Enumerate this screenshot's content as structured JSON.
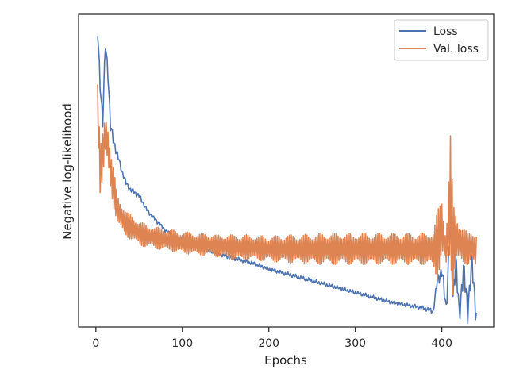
{
  "chart_data": {
    "type": "line",
    "xlabel": "Epochs",
    "ylabel": "Negative log-likelihood",
    "xlim": [
      -20,
      460
    ],
    "ylim": [
      0,
      100
    ],
    "x_ticks": [
      0,
      100,
      200,
      300,
      400
    ],
    "y_ticks_shown": false,
    "grid": false,
    "legend_position": "upper right",
    "series": [
      {
        "name": "Loss",
        "color": "#4c72b0",
        "x": [
          2,
          5,
          8,
          11,
          14,
          17,
          20,
          25,
          30,
          35,
          40,
          45,
          50,
          60,
          70,
          80,
          90,
          100,
          120,
          140,
          160,
          180,
          200,
          220,
          240,
          260,
          280,
          300,
          320,
          340,
          360,
          380,
          390,
          395,
          400,
          405,
          410,
          413,
          416,
          420,
          425,
          430,
          435,
          440
        ],
        "y": [
          94,
          78,
          66,
          90,
          82,
          64,
          60,
          55,
          50,
          46,
          44,
          43,
          42,
          37,
          34,
          31,
          29,
          28,
          25.5,
          23.5,
          22,
          20.5,
          18.5,
          17,
          15.5,
          14,
          12.5,
          11,
          9.5,
          8,
          7,
          6,
          5,
          15,
          18,
          6,
          34,
          10,
          22,
          4,
          18,
          6,
          20,
          4
        ],
        "oscillation_amplitude": [
          6,
          6,
          6,
          6,
          6,
          5,
          4,
          3,
          2,
          2,
          2,
          2,
          2,
          1.5,
          1.5,
          1.5,
          1.5,
          1.5,
          1.5,
          1.5,
          1.5,
          1.5,
          1.5,
          1.5,
          1.5,
          1.5,
          1.5,
          1.5,
          1.5,
          1.5,
          1.5,
          1.5,
          2,
          4,
          6,
          8,
          10,
          10,
          10,
          10,
          10,
          10,
          10,
          10
        ]
      },
      {
        "name": "Val. loss",
        "color": "#dd8452",
        "x": [
          2,
          5,
          8,
          11,
          14,
          17,
          20,
          25,
          30,
          35,
          40,
          45,
          50,
          60,
          70,
          80,
          90,
          100,
          120,
          140,
          160,
          180,
          200,
          220,
          240,
          260,
          280,
          300,
          320,
          340,
          360,
          380,
          390,
          395,
          400,
          405,
          410,
          413,
          416,
          420,
          425,
          430,
          435,
          440
        ],
        "y": [
          71,
          50,
          55,
          62,
          58,
          50,
          45,
          38,
          35,
          33,
          32,
          31,
          30,
          29,
          28.5,
          28,
          27.5,
          27,
          26.5,
          26,
          25.5,
          25.5,
          25,
          25,
          25,
          25,
          25,
          25,
          25,
          25,
          25,
          25,
          25,
          26,
          32,
          24,
          42,
          25,
          29,
          27,
          26,
          25,
          26,
          24
        ],
        "oscillation_amplitude": [
          14,
          14,
          16,
          16,
          14,
          12,
          12,
          10,
          9,
          8,
          8,
          8,
          8,
          7,
          7,
          7,
          7,
          7,
          7,
          7,
          8,
          8,
          8,
          9,
          9,
          10,
          10,
          10,
          10,
          10,
          10,
          10,
          12,
          22,
          20,
          10,
          40,
          30,
          16,
          14,
          12,
          10,
          10,
          14
        ]
      }
    ]
  }
}
